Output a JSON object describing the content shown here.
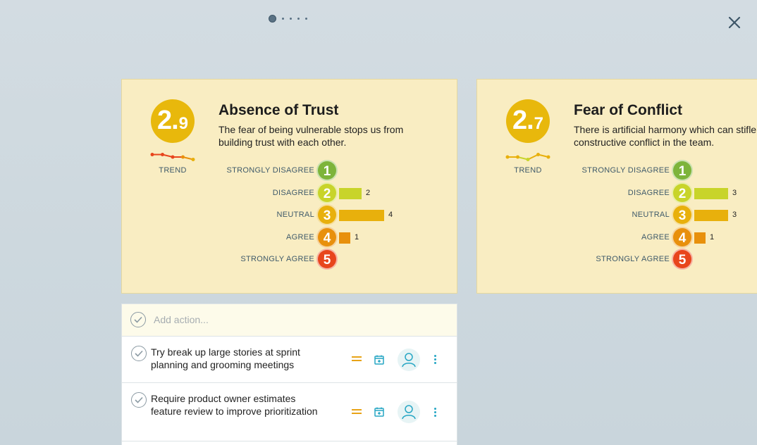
{
  "pager": {
    "pages": 5,
    "active": 1
  },
  "icons": {
    "close": "close-icon",
    "check": "checkmark-circle-icon",
    "priority": "equals-priority-icon",
    "calendar": "calendar-add-icon",
    "assignee": "person-icon",
    "more": "more-vertical-icon"
  },
  "colors": {
    "card_bg": "#f9edc2",
    "score_bg": "#e8b80c",
    "level_1": "#7db43a",
    "level_2": "#c8d42a",
    "level_3": "#e8b00c",
    "level_4": "#e8900c",
    "level_5": "#e8451c",
    "accent": "#26a6c4",
    "priority": "#e8a317"
  },
  "cards": [
    {
      "score_whole": "2.",
      "score_decimal": "9",
      "trend_label": "TREND",
      "trend_values": [
        3.1,
        3.1,
        3.0,
        3.0,
        2.9
      ],
      "title": "Absence of Trust",
      "description": "The fear of being vulnerable stops us from building trust with each other.",
      "responses": [
        {
          "level": "1",
          "label": "STRONGLY DISAGREE",
          "count": 0,
          "count_text": ""
        },
        {
          "level": "2",
          "label": "DISAGREE",
          "count": 2,
          "count_text": "2"
        },
        {
          "level": "3",
          "label": "NEUTRAL",
          "count": 4,
          "count_text": "4"
        },
        {
          "level": "4",
          "label": "AGREE",
          "count": 1,
          "count_text": "1"
        },
        {
          "level": "5",
          "label": "STRONGLY AGREE",
          "count": 0,
          "count_text": ""
        }
      ]
    },
    {
      "score_whole": "2.",
      "score_decimal": "7",
      "trend_label": "TREND",
      "trend_values": [
        2.8,
        2.8,
        2.7,
        2.9,
        2.8
      ],
      "title": "Fear of Conflict",
      "description": "There is artificial harmony which can stifle constructive conflict in the team.",
      "responses": [
        {
          "level": "1",
          "label": "STRONGLY DISAGREE",
          "count": 0,
          "count_text": ""
        },
        {
          "level": "2",
          "label": "DISAGREE",
          "count": 3,
          "count_text": "3"
        },
        {
          "level": "3",
          "label": "NEUTRAL",
          "count": 3,
          "count_text": "3"
        },
        {
          "level": "4",
          "label": "AGREE",
          "count": 1,
          "count_text": "1"
        },
        {
          "level": "5",
          "label": "STRONGLY AGREE",
          "count": 0,
          "count_text": ""
        }
      ]
    }
  ],
  "actions": {
    "placeholder": "Add action...",
    "items": [
      {
        "text": "Try break up large stories at sprint planning and grooming meetings"
      },
      {
        "text": "Require product owner estimates feature review to improve prioritization"
      }
    ]
  }
}
